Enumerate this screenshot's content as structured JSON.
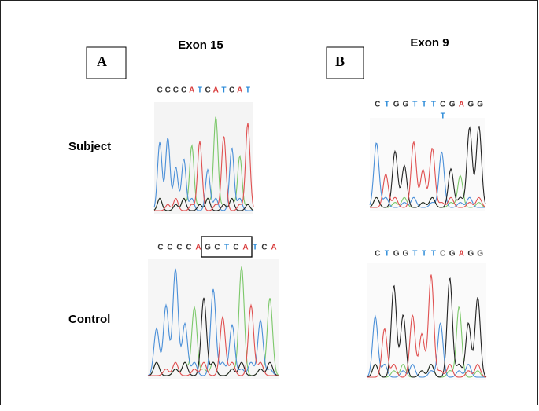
{
  "header": {
    "panel_a": "A",
    "panel_b": "B",
    "exon_a": "Exon 15",
    "exon_b": "Exon 9"
  },
  "rows": [
    "Subject",
    "Control"
  ],
  "panels": [
    {
      "sequence": [
        "C",
        "C",
        "C",
        "C",
        "A",
        "T",
        "C",
        "A",
        "T",
        "C",
        "A",
        "T"
      ]
    },
    {
      "sequence": [
        "C",
        "T",
        "G",
        "G",
        "T",
        "T",
        "T",
        "C",
        "G",
        "A",
        "G",
        "G"
      ],
      "secondary": "T"
    },
    {
      "sequence": [
        "C",
        "C",
        "C",
        "C",
        "A",
        "G",
        "C",
        "T",
        "C",
        "A",
        "T",
        "C",
        "A"
      ]
    },
    {
      "sequence": [
        "C",
        "T",
        "G",
        "G",
        "T",
        "T",
        "T",
        "C",
        "G",
        "A",
        "G",
        "G"
      ]
    }
  ]
}
